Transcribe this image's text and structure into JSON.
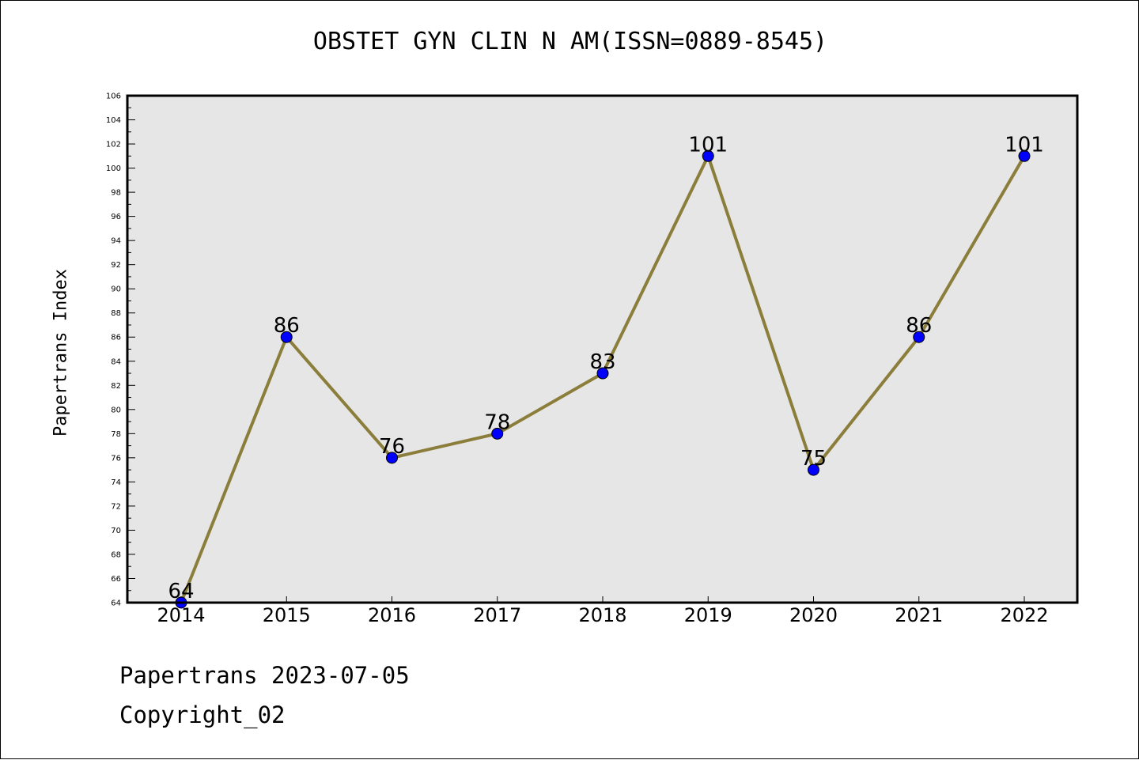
{
  "chart_data": {
    "type": "line",
    "title": "OBSTET GYN CLIN N AM(ISSN=0889-8545)",
    "xlabel": "",
    "ylabel": "Papertrans Index",
    "categories": [
      "2014",
      "2015",
      "2016",
      "2017",
      "2018",
      "2019",
      "2020",
      "2021",
      "2022"
    ],
    "series": [
      {
        "values": [
          64,
          86,
          76,
          78,
          83,
          101,
          75,
          86,
          101
        ],
        "line_color": "#8b7d3a",
        "marker_color": "#0000ff"
      }
    ],
    "data_labels": [
      "64",
      "86",
      "76",
      "78",
      "83",
      "101",
      "75",
      "86",
      "101"
    ],
    "ylim": [
      64,
      106
    ],
    "y_ticks": [
      "64",
      "66",
      "68",
      "70",
      "72",
      "74",
      "76",
      "78",
      "80",
      "82",
      "84",
      "86",
      "88",
      "90",
      "92",
      "94",
      "96",
      "98",
      "100",
      "102",
      "104",
      "106"
    ],
    "plot_background": "#e6e6e6",
    "grid": false,
    "legend": "none"
  },
  "footer": {
    "date_text": "Papertrans 2023-07-05",
    "copyright_text": "Copyright_02"
  }
}
